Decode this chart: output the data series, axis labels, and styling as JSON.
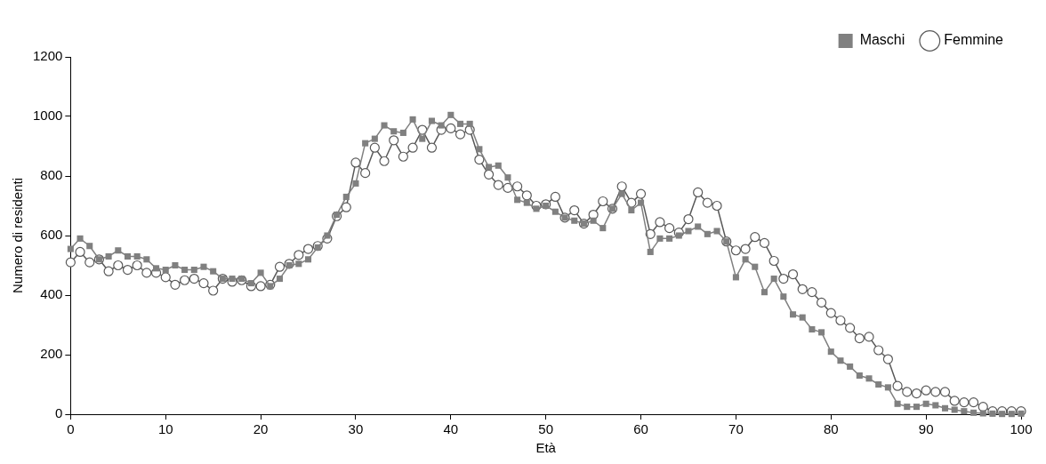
{
  "chart_data": {
    "type": "line",
    "xlabel": "Età",
    "ylabel": "Numero di residenti",
    "x": [
      0,
      1,
      2,
      3,
      4,
      5,
      6,
      7,
      8,
      9,
      10,
      11,
      12,
      13,
      14,
      15,
      16,
      17,
      18,
      19,
      20,
      21,
      22,
      23,
      24,
      25,
      26,
      27,
      28,
      29,
      30,
      31,
      32,
      33,
      34,
      35,
      36,
      37,
      38,
      39,
      40,
      41,
      42,
      43,
      44,
      45,
      46,
      47,
      48,
      49,
      50,
      51,
      52,
      53,
      54,
      55,
      56,
      57,
      58,
      59,
      60,
      61,
      62,
      63,
      64,
      65,
      66,
      67,
      68,
      69,
      70,
      71,
      72,
      73,
      74,
      75,
      76,
      77,
      78,
      79,
      80,
      81,
      82,
      83,
      84,
      85,
      86,
      87,
      88,
      89,
      90,
      91,
      92,
      93,
      94,
      95,
      96,
      97,
      98,
      99,
      100
    ],
    "series": [
      {
        "name": "Maschi",
        "color": "#808080",
        "marker": "square",
        "values": [
          555,
          590,
          565,
          520,
          530,
          550,
          530,
          530,
          520,
          490,
          485,
          500,
          485,
          485,
          495,
          480,
          455,
          455,
          455,
          440,
          475,
          430,
          455,
          500,
          505,
          520,
          560,
          600,
          670,
          730,
          775,
          910,
          925,
          970,
          950,
          945,
          990,
          925,
          985,
          970,
          1005,
          975,
          975,
          890,
          830,
          835,
          795,
          720,
          710,
          690,
          700,
          680,
          660,
          650,
          640,
          650,
          625,
          690,
          740,
          685,
          710,
          545,
          590,
          590,
          600,
          615,
          630,
          605,
          615,
          580,
          460,
          520,
          495,
          410,
          455,
          395,
          335,
          325,
          285,
          275,
          210,
          180,
          160,
          130,
          120,
          100,
          90,
          35,
          25,
          25,
          35,
          30,
          20,
          15,
          10,
          5,
          3,
          2,
          1,
          1,
          2
        ]
      },
      {
        "name": "Femmine",
        "color": "#595959",
        "marker": "circle",
        "values": [
          510,
          545,
          510,
          520,
          480,
          500,
          485,
          500,
          475,
          475,
          460,
          435,
          450,
          455,
          440,
          415,
          455,
          445,
          450,
          430,
          430,
          435,
          495,
          505,
          535,
          555,
          565,
          590,
          665,
          695,
          845,
          810,
          895,
          850,
          920,
          865,
          895,
          955,
          895,
          955,
          960,
          940,
          955,
          855,
          805,
          770,
          760,
          765,
          735,
          700,
          705,
          730,
          660,
          685,
          640,
          670,
          715,
          690,
          765,
          710,
          740,
          605,
          645,
          625,
          610,
          655,
          745,
          710,
          700,
          580,
          550,
          555,
          595,
          575,
          515,
          455,
          470,
          420,
          410,
          375,
          340,
          315,
          290,
          255,
          260,
          215,
          185,
          95,
          75,
          70,
          80,
          75,
          75,
          45,
          40,
          40,
          25,
          10,
          10,
          10,
          10
        ]
      }
    ],
    "xlim": [
      0,
      100
    ],
    "xticks": [
      0,
      10,
      20,
      30,
      40,
      50,
      60,
      70,
      80,
      90,
      100
    ],
    "ylim": [
      0,
      1200
    ],
    "yticks": [
      0,
      200,
      400,
      600,
      800,
      1000,
      1200
    ],
    "grid": false,
    "legend": "top right"
  }
}
